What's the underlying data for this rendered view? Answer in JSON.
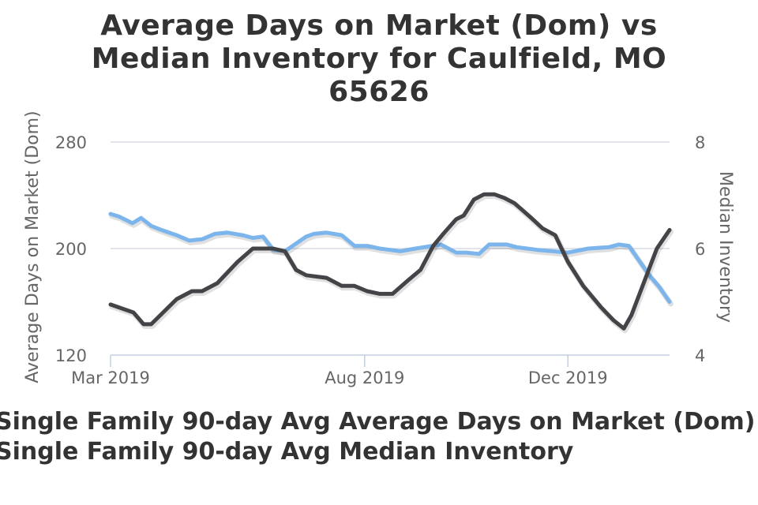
{
  "title_lines": [
    "Average Days on Market (Dom) vs",
    "Median Inventory for Caulfield, MO",
    "65626"
  ],
  "chart_data": {
    "type": "line",
    "title": "Average Days on Market (Dom) vs Median Inventory for Caulfield, MO 65626",
    "x_ticks": [
      "Mar 2019",
      "Aug 2019",
      "Dec 2019"
    ],
    "x_tick_months": [
      0,
      5,
      9
    ],
    "x_range_months": [
      0,
      11
    ],
    "left_axis": {
      "label": "Average Days on Market (Dom)",
      "min": 120,
      "max": 280,
      "ticks": [
        120,
        200,
        280
      ]
    },
    "right_axis": {
      "label": "Median Inventory",
      "min": 4,
      "max": 8,
      "ticks": [
        4,
        6,
        8
      ]
    },
    "grid": true,
    "series": [
      {
        "name": "Single Family 90-day Avg Average Days on Market (Dom)",
        "axis": "left",
        "color": "#7cb5ec",
        "x": [
          0.0,
          0.17,
          0.43,
          0.6,
          0.8,
          1.0,
          1.3,
          1.55,
          1.8,
          2.05,
          2.3,
          2.6,
          2.8,
          3.0,
          3.2,
          3.43,
          3.85,
          4.0,
          4.25,
          4.55,
          4.8,
          5.05,
          5.3,
          5.5,
          5.7,
          6.0,
          6.5,
          6.8,
          7.0,
          7.25,
          7.45,
          7.8,
          8.0,
          8.2,
          8.4,
          8.7,
          9.0,
          9.4,
          9.8,
          10.0,
          10.2,
          10.4,
          10.6,
          10.8,
          11.0
        ],
        "y": [
          226,
          224,
          219,
          223,
          217,
          214,
          210,
          206,
          207,
          211,
          212,
          210,
          208,
          209,
          199,
          198,
          209,
          211,
          212,
          210,
          202,
          202,
          200,
          199,
          198,
          200,
          203,
          197,
          197,
          196,
          203,
          203,
          201,
          200,
          199,
          198,
          197,
          200,
          201,
          203,
          202,
          191,
          180,
          171,
          160
        ]
      },
      {
        "name": "Single Family 90-day Avg Median Inventory",
        "axis": "right",
        "color": "#434348",
        "x": [
          0.0,
          0.45,
          0.65,
          0.8,
          1.3,
          1.6,
          1.8,
          2.1,
          2.5,
          2.8,
          3.2,
          3.43,
          3.65,
          3.85,
          4.25,
          4.55,
          4.8,
          5.05,
          5.3,
          5.55,
          5.85,
          6.1,
          6.35,
          6.55,
          6.8,
          6.95,
          7.15,
          7.35,
          7.55,
          7.75,
          7.95,
          8.25,
          8.5,
          8.75,
          9.0,
          9.3,
          9.65,
          9.9,
          10.1,
          10.25,
          10.55,
          10.75,
          11.0
        ],
        "y": [
          4.95,
          4.8,
          4.58,
          4.58,
          5.05,
          5.2,
          5.2,
          5.35,
          5.75,
          6.0,
          6.0,
          5.95,
          5.6,
          5.5,
          5.45,
          5.3,
          5.3,
          5.2,
          5.15,
          5.15,
          5.4,
          5.6,
          6.05,
          6.28,
          6.55,
          6.62,
          6.92,
          7.02,
          7.02,
          6.95,
          6.85,
          6.6,
          6.38,
          6.25,
          5.75,
          5.3,
          4.9,
          4.65,
          4.5,
          4.75,
          5.5,
          6.0,
          6.35
        ]
      }
    ]
  }
}
